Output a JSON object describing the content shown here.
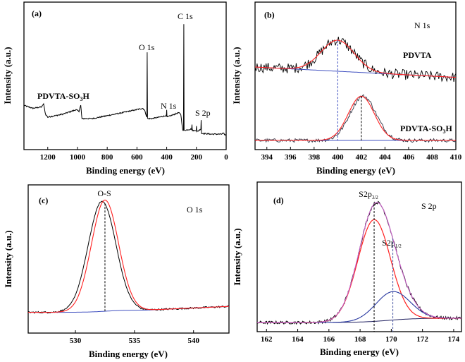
{
  "chart_data": [
    {
      "panel": "(a)",
      "type": "line",
      "xlabel": "Binding energy (eV)",
      "ylabel": "Intensity (a.u.)",
      "xlim": [
        1360,
        0
      ],
      "xticks": [
        1200,
        1000,
        800,
        600,
        400,
        200,
        0
      ],
      "ylim": [
        0,
        1
      ],
      "sample_label": {
        "main": "PDVTA-SO",
        "sub": "3",
        "tail": "H"
      },
      "annotations": [
        "C 1s",
        "O 1s",
        "N 1s",
        "S 2p"
      ],
      "series": [
        {
          "color": "#000000",
          "points": [
            [
              1360,
              0.3
            ],
            [
              1330,
              0.29
            ],
            [
              1300,
              0.28
            ],
            [
              1240,
              0.29
            ],
            [
              1228,
              0.31
            ],
            [
              1215,
              0.24
            ],
            [
              1200,
              0.22
            ],
            [
              1100,
              0.24
            ],
            [
              1010,
              0.27
            ],
            [
              990,
              0.26
            ],
            [
              978,
              0.3
            ],
            [
              970,
              0.21
            ],
            [
              900,
              0.21
            ],
            [
              700,
              0.25
            ],
            [
              560,
              0.28
            ],
            [
              545,
              0.26
            ],
            [
              535,
              0.22
            ],
            [
              533,
              0.25
            ],
            [
              531,
              0.66
            ],
            [
              529,
              0.21
            ],
            [
              500,
              0.21
            ],
            [
              402,
              0.23
            ],
            [
              400,
              0.27
            ],
            [
              398,
              0.22
            ],
            [
              320,
              0.25
            ],
            [
              305,
              0.24
            ],
            [
              292,
              0.13
            ],
            [
              287,
              0.13
            ],
            [
              285,
              0.85
            ],
            [
              283,
              0.13
            ],
            [
              232,
              0.14
            ],
            [
              230,
              0.17
            ],
            [
              228,
              0.13
            ],
            [
              202,
              0.13
            ],
            [
              200,
              0.16
            ],
            [
              198,
              0.12
            ],
            [
              170,
              0.14
            ],
            [
              168,
              0.2
            ],
            [
              166,
              0.11
            ],
            [
              100,
              0.105
            ],
            [
              30,
              0.105
            ],
            [
              20,
              0.11
            ],
            [
              0,
              0.095
            ]
          ]
        }
      ]
    },
    {
      "panel": "(b)",
      "type": "line",
      "title": "N 1s",
      "xlabel": "Binding energy (eV)",
      "ylabel": "Intensity (a.u.)",
      "xlim": [
        393,
        410
      ],
      "xticks": [
        394,
        396,
        398,
        400,
        402,
        404,
        406,
        408,
        410
      ],
      "ylim": [
        0,
        1
      ],
      "series": [
        {
          "name": "PDVTA",
          "baseline": [
            [
              393,
              0.56
            ],
            [
              410,
              0.49
            ]
          ],
          "peak_center": 400.0,
          "peak_height": 0.21,
          "peak_sigma": 1.4,
          "fit_color": "#ff2020",
          "baseline_color": "#4050c0"
        },
        {
          "name_parts": {
            "main": "PDVTA-SO",
            "sub": "3",
            "tail": "H"
          },
          "baseline": [
            [
              393,
              0.062
            ],
            [
              410,
              0.062
            ]
          ],
          "peak_center": 402.0,
          "peak_height": 0.3,
          "peak_sigma": 1.1,
          "fit_color": "#ff2020",
          "baseline_color": "#4050c0"
        }
      ],
      "markers": [
        {
          "x": 400.0,
          "color": "#4050c0"
        },
        {
          "x": 402.0,
          "color": "#000000"
        }
      ]
    },
    {
      "panel": "(c)",
      "type": "line",
      "title": "O 1s",
      "xlabel": "Binding energy (eV)",
      "ylabel": "Intensity (a.u.)",
      "xlim": [
        526,
        543
      ],
      "xticks": [
        530,
        535,
        540
      ],
      "ylim": [
        0,
        1
      ],
      "components": [
        {
          "label": "O-S",
          "center": 532.5,
          "height": 0.75,
          "sigma": 1.15,
          "color": "#ff2020"
        }
      ],
      "background": {
        "start": 0.14,
        "end": 0.18,
        "color": "#4050c0"
      },
      "marker": {
        "x": 532.5,
        "color": "#000000"
      }
    },
    {
      "panel": "(d)",
      "type": "line",
      "title": "S 2p",
      "xlabel": "Binding energy (eV)",
      "ylabel": "Intensity (a.u.)",
      "xlim": [
        161.4,
        174.5
      ],
      "xticks": [
        162,
        164,
        166,
        168,
        170,
        172,
        174
      ],
      "ylim": [
        0,
        1
      ],
      "components": [
        {
          "label": {
            "main": "S2p",
            "sub": "3/2"
          },
          "center": 168.9,
          "height": 0.68,
          "sigma": 1.05,
          "color": "#ff2020"
        },
        {
          "label": {
            "main": "S2p",
            "sub": "1/2"
          },
          "center": 170.1,
          "height": 0.19,
          "sigma": 1.1,
          "color": "#2838a0"
        }
      ],
      "envelope_color": "#c860c8",
      "background": {
        "start": 0.061,
        "end": 0.09,
        "color": "#202060"
      },
      "markers": [
        {
          "x": 168.9,
          "color": "#000000"
        },
        {
          "x": 170.1,
          "color": "#4050a0"
        }
      ]
    }
  ]
}
